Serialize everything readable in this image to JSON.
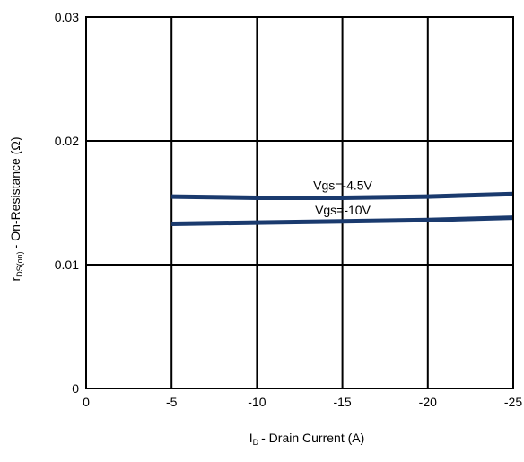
{
  "chart_data": {
    "type": "line",
    "title": "",
    "xlabel": {
      "symbol": "I",
      "subscript": "D",
      "text": "- Drain Current (A)"
    },
    "ylabel": {
      "symbol": "r",
      "subscript": "DS(on)",
      "text": "- On-Resistance (Ω)"
    },
    "xlim": [
      0,
      -25
    ],
    "ylim": [
      0,
      0.03
    ],
    "x_ticks": [
      0,
      -5,
      -10,
      -15,
      -20,
      -25
    ],
    "x_tick_labels": [
      "0",
      "-5",
      "-10",
      "-15",
      "-20",
      "-25"
    ],
    "y_ticks": [
      0,
      0.01,
      0.02,
      0.03
    ],
    "y_tick_labels": [
      "0",
      "0.01",
      "0.02",
      "0.03"
    ],
    "grid": true,
    "series": [
      {
        "name": "Vgs=-4.5V",
        "color": "#1a3a6e",
        "x": [
          -5,
          -10,
          -15,
          -20,
          -25
        ],
        "y": [
          0.0155,
          0.0154,
          0.0154,
          0.0155,
          0.0157
        ]
      },
      {
        "name": "Vgs=-10V",
        "color": "#1a3a6e",
        "x": [
          -5,
          -10,
          -15,
          -20,
          -25
        ],
        "y": [
          0.0133,
          0.0134,
          0.0135,
          0.0136,
          0.0138
        ]
      }
    ]
  }
}
